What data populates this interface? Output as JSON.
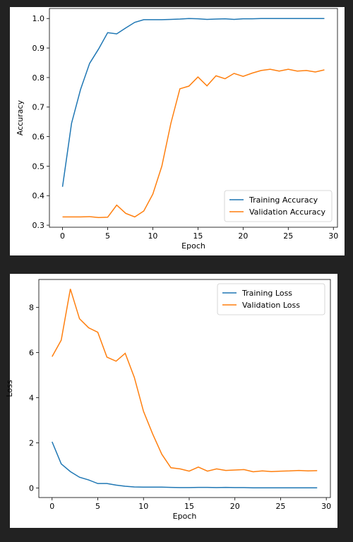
{
  "chart_data": [
    {
      "type": "line",
      "xlabel": "Epoch",
      "ylabel": "Accuracy",
      "x": [
        0,
        1,
        2,
        3,
        4,
        5,
        6,
        7,
        8,
        9,
        10,
        11,
        12,
        13,
        14,
        15,
        16,
        17,
        18,
        19,
        20,
        21,
        22,
        23,
        24,
        25,
        26,
        27,
        28,
        29
      ],
      "series": [
        {
          "name": "Training Accuracy",
          "color": "#1f77b4",
          "values": [
            0.43,
            0.645,
            0.76,
            0.848,
            0.897,
            0.952,
            0.948,
            0.968,
            0.987,
            0.996,
            0.996,
            0.996,
            0.997,
            0.998,
            1.0,
            0.999,
            0.997,
            0.998,
            0.999,
            0.997,
            0.999,
            0.999,
            1.0,
            1.0,
            1.0,
            1.0,
            1.0,
            1.0,
            1.0,
            1.0
          ]
        },
        {
          "name": "Validation Accuracy",
          "color": "#ff7f0e",
          "values": [
            0.328,
            0.328,
            0.328,
            0.329,
            0.326,
            0.327,
            0.368,
            0.34,
            0.328,
            0.348,
            0.405,
            0.5,
            0.645,
            0.762,
            0.771,
            0.802,
            0.772,
            0.806,
            0.796,
            0.814,
            0.804,
            0.815,
            0.824,
            0.828,
            0.822,
            0.828,
            0.822,
            0.824,
            0.819,
            0.826
          ]
        }
      ],
      "xlim": [
        -1.45,
        30.45
      ],
      "xticks": [
        0,
        5,
        10,
        15,
        20,
        25,
        30
      ],
      "ylim": [
        0.293,
        1.034
      ],
      "yticks": [
        0.3,
        0.4,
        0.5,
        0.6,
        0.7,
        0.8,
        0.9,
        {
          "value": 1.0,
          "label": "1.0"
        }
      ],
      "legend": "lower right"
    },
    {
      "type": "line",
      "xlabel": "Epoch",
      "ylabel": "Loss",
      "x": [
        0,
        1,
        2,
        3,
        4,
        5,
        6,
        7,
        8,
        9,
        10,
        11,
        12,
        13,
        14,
        15,
        16,
        17,
        18,
        19,
        20,
        21,
        22,
        23,
        24,
        25,
        26,
        27,
        28,
        29
      ],
      "series": [
        {
          "name": "Training Loss",
          "color": "#1f77b4",
          "values": [
            2.05,
            1.07,
            0.73,
            0.48,
            0.36,
            0.2,
            0.2,
            0.13,
            0.08,
            0.05,
            0.04,
            0.04,
            0.04,
            0.03,
            0.02,
            0.02,
            0.03,
            0.03,
            0.02,
            0.03,
            0.02,
            0.02,
            0.01,
            0.01,
            0.01,
            0.01,
            0.01,
            0.01,
            0.01,
            0.01
          ]
        },
        {
          "name": "Validation Loss",
          "color": "#ff7f0e",
          "values": [
            5.82,
            6.55,
            8.82,
            7.5,
            7.1,
            6.9,
            5.8,
            5.62,
            5.97,
            4.9,
            3.4,
            2.4,
            1.5,
            0.9,
            0.85,
            0.75,
            0.93,
            0.75,
            0.85,
            0.78,
            0.8,
            0.82,
            0.72,
            0.76,
            0.73,
            0.75,
            0.76,
            0.78,
            0.76,
            0.77
          ]
        }
      ],
      "xlim": [
        -1.45,
        30.45
      ],
      "xticks": [
        0,
        5,
        10,
        15,
        20,
        25,
        30
      ],
      "ylim": [
        -0.42,
        9.24
      ],
      "yticks": [
        0,
        2,
        4,
        6,
        8
      ],
      "legend": "upper right"
    }
  ]
}
